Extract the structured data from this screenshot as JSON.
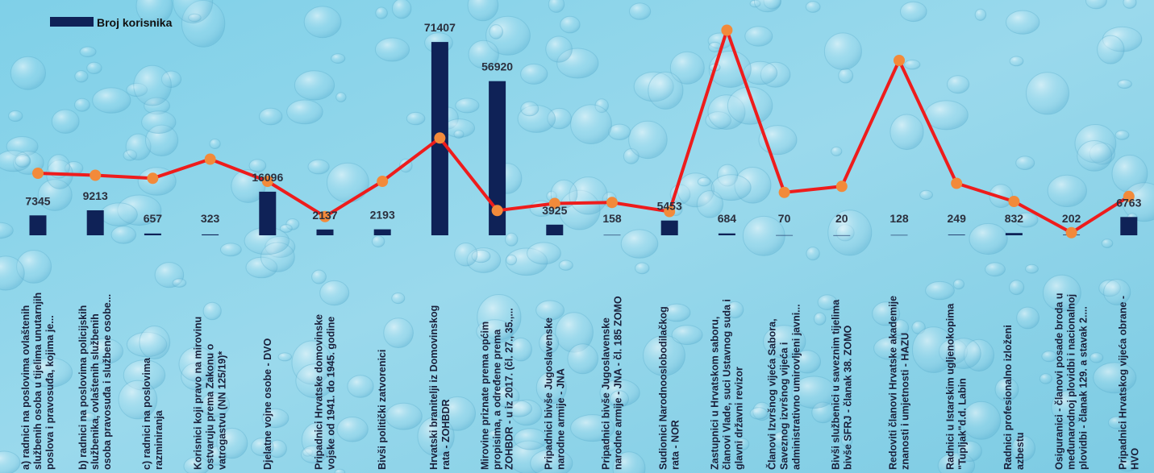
{
  "chart_data": {
    "type": "bar",
    "legend": {
      "label": "Broj korisnika",
      "placement": "top-left"
    },
    "bar_color": "#0f2257",
    "line_color": "#ee1c1c",
    "marker_color": "#f28a3a",
    "ylim": [
      0,
      75000
    ],
    "categories": [
      [
        "a) radnici na poslovima ovlaštenih",
        "službenih osoba u tijelima unutarnjih",
        "poslova i pravosuđa, kojima je..."
      ],
      [
        "b) radnici na  poslovima policijskih",
        "službenika, ovlaštenih službenih",
        "osoba pravosuđa i službene osobe..."
      ],
      [
        "c) radnici na poslovima",
        "razminiranja"
      ],
      [
        "Korisnici koji pravo na mirovinu",
        "ostvaruju prema Zakonu o",
        "vatrogastvu (NN 125/19)*"
      ],
      [
        "Djelatne vojne osobe - DVO"
      ],
      [
        "Pripadnici Hrvatske domovinske",
        "vojske od 1941. do 1945. godine"
      ],
      [
        "Bivši politički zatvorenici"
      ],
      [
        "Hrvatski branitelji iz Domovinskog",
        "rata - ZOHBDR"
      ],
      [
        "Mirovine priznate prema općim",
        "propisima, a određene prema",
        "ZOHBDR - u iz 2017. (čl. 27., 35.,..."
      ],
      [
        "Pripadnici bivše Jugoslavenske",
        "narodne armije - JNA"
      ],
      [
        "Pripadnici bivše Jugoslavenske",
        "narodne armije - JNA - čl. 185 ZOMO"
      ],
      [
        "Sudionici Narodnooslobodilačkog",
        "rata - NOR"
      ],
      [
        "Zastupnici u Hrvatskom saboru,",
        "članovi Vlade, suci Ustavnog suda i",
        "glavni državni revizor"
      ],
      [
        "Članovi Izvršnog vijeća Sabora,",
        "Saveznog izvršnog vijeća i",
        "administrativno umirovljeni javni..."
      ],
      [
        "Bivši službenici u saveznim tijelima",
        "bivše SFRJ - članak 38. ZOMO"
      ],
      [
        "Redoviti članovi Hrvatske akademije",
        "znanosti i umjetnosti - HAZU"
      ],
      [
        "Radnici u Istarskim ugljenokopima",
        "\"Tupljak\"d.d. Labin"
      ],
      [
        "Radnici profesionalno izloženi",
        "azbestu"
      ],
      [
        "Osiguranici - članovi posade broda u",
        "međunarodnoj plovidbi i nacionalnoj",
        "plovidbi - članak 129. a stavak 2...."
      ],
      [
        "Pripadnici Hrvatskog vijeća obrane -",
        "HVO"
      ]
    ],
    "series": [
      {
        "name": "Broj korisnika",
        "values": [
          7345,
          9213,
          657,
          323,
          16096,
          2137,
          2193,
          71407,
          56920,
          3925,
          158,
          5453,
          684,
          70,
          20,
          128,
          249,
          832,
          202,
          6763
        ],
        "value_labels": [
          "7345",
          "9213",
          "657",
          "323",
          "16096",
          "2137",
          "2193",
          "71407",
          "56920",
          "3925",
          "158",
          "5453",
          "684",
          "70",
          "20",
          "128",
          "249",
          "832",
          "202",
          "6763"
        ]
      },
      {
        "values": [
          0.56,
          0.55,
          0.535,
          0.63,
          0.52,
          0.345,
          0.52,
          0.735,
          0.375,
          0.41,
          0.415,
          0.37,
          1.27,
          0.465,
          0.495,
          1.12,
          0.51,
          0.42,
          0.265,
          0.445
        ],
        "ylim": [
          0,
          1.3
        ]
      }
    ]
  }
}
